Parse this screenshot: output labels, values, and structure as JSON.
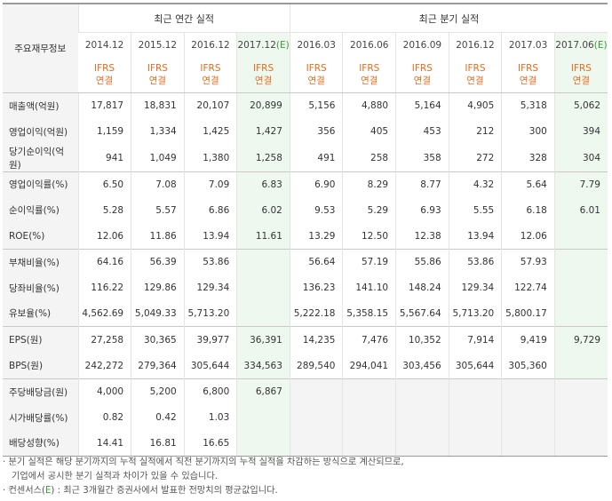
{
  "header": {
    "stub_label": "주요재무정보",
    "annual_group": "최근 연간 실적",
    "quarter_group": "최근 분기 실적",
    "ifrs_top": "IFRS",
    "ifrs_bottom": "연결",
    "estimate_mark": "(E)",
    "periods": [
      {
        "label": "2014.12",
        "estimate": false
      },
      {
        "label": "2015.12",
        "estimate": false
      },
      {
        "label": "2016.12",
        "estimate": false
      },
      {
        "label": "2017.12",
        "estimate": true
      },
      {
        "label": "2016.03",
        "estimate": false
      },
      {
        "label": "2016.06",
        "estimate": false
      },
      {
        "label": "2016.09",
        "estimate": false
      },
      {
        "label": "2016.12",
        "estimate": false
      },
      {
        "label": "2017.03",
        "estimate": false
      },
      {
        "label": "2017.06",
        "estimate": true
      }
    ]
  },
  "rows": [
    {
      "label": "매출액(억원)",
      "sep": false,
      "values": [
        "17,817",
        "18,831",
        "20,107",
        "20,899",
        "5,156",
        "4,880",
        "5,164",
        "4,905",
        "5,318",
        "5,062"
      ]
    },
    {
      "label": "영업이익(억원)",
      "sep": false,
      "values": [
        "1,159",
        "1,334",
        "1,425",
        "1,427",
        "356",
        "405",
        "453",
        "212",
        "300",
        "394"
      ]
    },
    {
      "label": "당기순이익(억원)",
      "sep": false,
      "values": [
        "941",
        "1,049",
        "1,380",
        "1,258",
        "491",
        "258",
        "358",
        "272",
        "328",
        "304"
      ]
    },
    {
      "label": "영업이익률(%)",
      "sep": true,
      "values": [
        "6.50",
        "7.08",
        "7.09",
        "6.83",
        "6.90",
        "8.29",
        "8.77",
        "4.32",
        "5.64",
        "7.79"
      ]
    },
    {
      "label": "순이익률(%)",
      "sep": false,
      "values": [
        "5.28",
        "5.57",
        "6.86",
        "6.02",
        "9.53",
        "5.29",
        "6.93",
        "5.55",
        "6.18",
        "6.01"
      ]
    },
    {
      "label": "ROE(%)",
      "sep": false,
      "values": [
        "12.06",
        "11.86",
        "13.94",
        "11.61",
        "13.29",
        "12.50",
        "12.38",
        "13.94",
        "12.06",
        ""
      ]
    },
    {
      "label": "부채비율(%)",
      "sep": true,
      "values": [
        "64.16",
        "56.39",
        "53.86",
        "",
        "56.64",
        "57.19",
        "55.86",
        "53.86",
        "57.93",
        ""
      ]
    },
    {
      "label": "당좌비율(%)",
      "sep": false,
      "values": [
        "116.22",
        "129.86",
        "129.34",
        "",
        "136.23",
        "141.10",
        "148.24",
        "129.34",
        "122.74",
        ""
      ]
    },
    {
      "label": "유보율(%)",
      "sep": false,
      "values": [
        "4,562.69",
        "5,049.33",
        "5,713.20",
        "",
        "5,222.18",
        "5,358.15",
        "5,567.64",
        "5,713.20",
        "5,800.17",
        ""
      ]
    },
    {
      "label": "EPS(원)",
      "sep": true,
      "values": [
        "27,258",
        "30,365",
        "39,977",
        "36,391",
        "14,235",
        "7,476",
        "10,352",
        "7,914",
        "9,419",
        "9,729"
      ]
    },
    {
      "label": "BPS(원)",
      "sep": false,
      "values": [
        "242,272",
        "279,364",
        "305,644",
        "334,563",
        "289,540",
        "294,041",
        "303,456",
        "305,644",
        "305,360",
        ""
      ]
    },
    {
      "label": "주당배당금(원)",
      "sep": true,
      "values": [
        "4,000",
        "5,200",
        "6,800",
        "6,867",
        null,
        null,
        null,
        null,
        null,
        null
      ]
    },
    {
      "label": "시가배당률(%)",
      "sep": false,
      "values": [
        "0.82",
        "0.42",
        "1.03",
        "",
        null,
        null,
        null,
        null,
        null,
        null
      ]
    },
    {
      "label": "배당성향(%)",
      "sep": false,
      "values": [
        "14.41",
        "16.81",
        "16.65",
        "",
        null,
        null,
        null,
        null,
        null,
        null
      ]
    }
  ],
  "notes": {
    "line1": "· 분기 실적은 해당 분기까지의 누적 실적에서 직전 분기까지의 누적 실적을 차감하는 방식으로 계산되므로,",
    "line2": "기업에서 공시한 분기 실적과 차이가 있을 수 있습니다.",
    "line3_prefix": "· 컨센서스(",
    "line3_mark": "E",
    "line3_suffix": ") : 최근 3개월간 증권사에서 발표한 전망치의 평균값입니다."
  },
  "colors": {
    "ifrs_orange": "#e86b1e",
    "estimate_bg": "#eff8ef",
    "estimate_green": "#3a9a3a",
    "stub_bg": "#f4f4f4"
  }
}
